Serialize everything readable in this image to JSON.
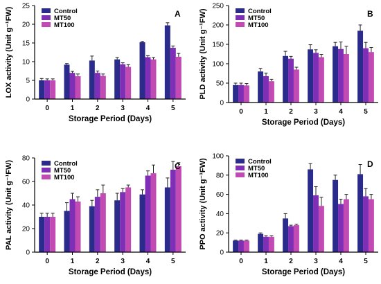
{
  "figure": {
    "xlabel": "Storage Period (Days)",
    "legend": [
      "Control",
      "MT50",
      "MT100"
    ],
    "colors": [
      "#2b2b8c",
      "#7f2fb5",
      "#c24bb3"
    ]
  },
  "chart_data": [
    {
      "type": "bar",
      "panel_letter": "A",
      "ylabel": "LOX activity (Unit g⁻¹FW)",
      "xlabel": "Storage Period (Days)",
      "categories": [
        "0",
        "1",
        "2",
        "3",
        "4",
        "5"
      ],
      "ylim": [
        0,
        25
      ],
      "yticks": [
        0,
        5,
        10,
        15,
        20,
        25
      ],
      "legend_position": "top-left",
      "series": [
        {
          "name": "Control",
          "values": [
            5.0,
            9.2,
            10.3,
            10.6,
            15.2,
            19.7
          ],
          "errors": [
            0.5,
            0.3,
            1.2,
            0.5,
            0.2,
            0.7
          ]
        },
        {
          "name": "MT50",
          "values": [
            5.0,
            7.0,
            7.0,
            9.3,
            11.2,
            13.7
          ],
          "errors": [
            0.4,
            0.4,
            0.5,
            0.4,
            0.4,
            0.5
          ]
        },
        {
          "name": "MT100",
          "values": [
            5.0,
            6.1,
            6.2,
            8.6,
            10.6,
            11.3
          ],
          "errors": [
            0.4,
            0.6,
            0.5,
            0.6,
            0.5,
            0.9
          ]
        }
      ]
    },
    {
      "type": "bar",
      "panel_letter": "B",
      "ylabel": "PLD activity (Unit g⁻¹FW)",
      "xlabel": "Storage Period (Days)",
      "categories": [
        "0",
        "1",
        "2",
        "3",
        "4",
        "5"
      ],
      "ylim": [
        0,
        250
      ],
      "yticks": [
        0,
        50,
        100,
        150,
        200,
        250
      ],
      "legend_position": "top-left",
      "series": [
        {
          "name": "Control",
          "values": [
            45,
            80,
            120,
            137,
            145,
            185
          ],
          "errors": [
            5,
            8,
            12,
            12,
            10,
            15
          ]
        },
        {
          "name": "MT50",
          "values": [
            45,
            68,
            113,
            128,
            138,
            140
          ],
          "errors": [
            5,
            8,
            6,
            8,
            18,
            15
          ]
        },
        {
          "name": "MT100",
          "values": [
            44,
            55,
            85,
            117,
            125,
            130
          ],
          "errors": [
            5,
            5,
            6,
            7,
            20,
            12
          ]
        }
      ]
    },
    {
      "type": "bar",
      "panel_letter": "C",
      "ylabel": "PAL activity (Unit g⁻¹FW)",
      "xlabel": "Storage Period (Days)",
      "categories": [
        "0",
        "1",
        "2",
        "3",
        "4",
        "5"
      ],
      "ylim": [
        0,
        80
      ],
      "yticks": [
        0,
        20,
        40,
        60,
        80
      ],
      "legend_position": "top-left",
      "series": [
        {
          "name": "Control",
          "values": [
            30,
            35,
            39,
            44,
            49,
            55
          ],
          "errors": [
            3,
            7,
            5,
            6,
            4,
            8
          ]
        },
        {
          "name": "MT50",
          "values": [
            30,
            45,
            47,
            51,
            65,
            70
          ],
          "errors": [
            3,
            5,
            6,
            3,
            4,
            7
          ]
        },
        {
          "name": "MT100",
          "values": [
            30,
            43,
            50,
            55,
            67,
            73
          ],
          "errors": [
            3,
            4,
            7,
            2,
            7,
            3
          ]
        }
      ]
    },
    {
      "type": "bar",
      "panel_letter": "D",
      "ylabel": "PPO activity (Unit g⁻¹FW)",
      "xlabel": "Storage Period (Days)",
      "categories": [
        "0",
        "1",
        "2",
        "3",
        "4",
        "5"
      ],
      "ylim": [
        0,
        100
      ],
      "yticks": [
        0,
        20,
        40,
        60,
        80,
        100
      ],
      "legend_position": "top-left",
      "series": [
        {
          "name": "Control",
          "values": [
            12,
            19,
            35,
            86,
            75,
            81
          ],
          "errors": [
            0.5,
            1,
            5,
            6,
            5,
            10
          ]
        },
        {
          "name": "MT50",
          "values": [
            12,
            16,
            27,
            59,
            50,
            58
          ],
          "errors": [
            0.5,
            1,
            1,
            9,
            5,
            8
          ]
        },
        {
          "name": "MT100",
          "values": [
            12,
            16,
            28,
            48,
            55,
            55
          ],
          "errors": [
            0.5,
            1,
            1,
            9,
            5,
            5
          ]
        }
      ]
    }
  ]
}
